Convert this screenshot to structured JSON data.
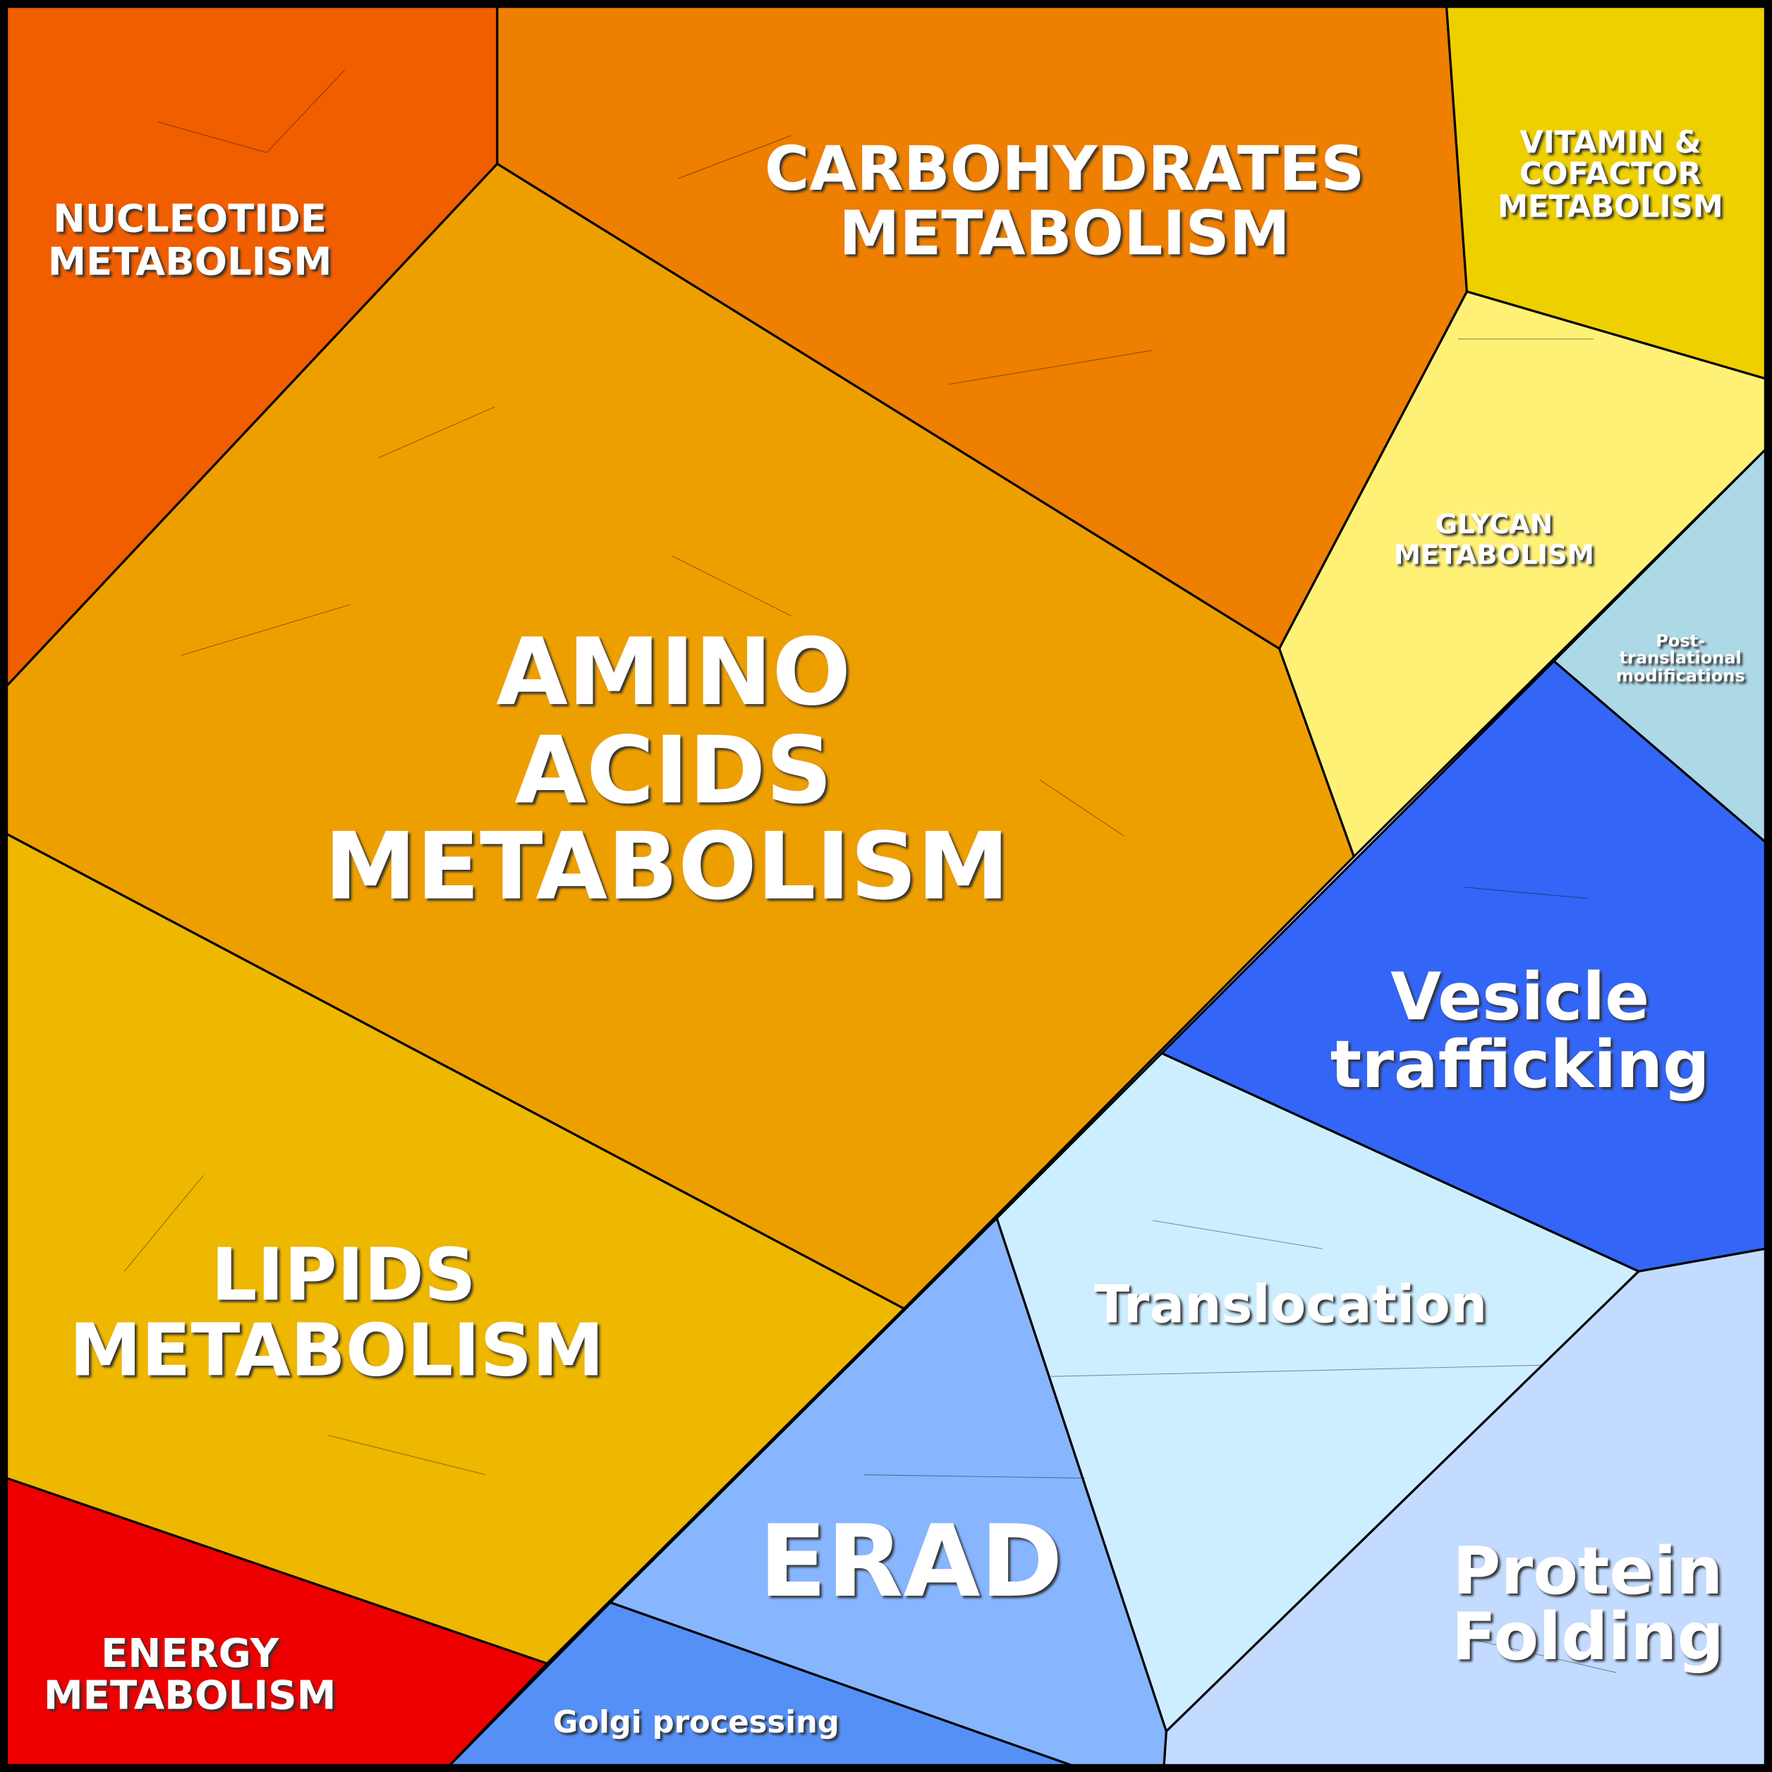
{
  "regions": [
    {
      "label": [
        "NUCLEOTIDE",
        "METABOLISM"
      ]
    },
    {
      "label": [
        "CARBOHYDRATES",
        "METABOLISM"
      ]
    },
    {
      "label": [
        "VITAMIN &",
        "COFACTOR",
        "METABOLISM"
      ]
    },
    {
      "label": [
        "GLYCAN",
        "METABOLISM"
      ]
    },
    {
      "label": [
        "Post-",
        "translational",
        "modifications"
      ]
    },
    {
      "label": [
        "AMINO",
        "ACIDS",
        "METABOLISM"
      ]
    },
    {
      "label": [
        "LIPIDS",
        "METABOLISM"
      ]
    },
    {
      "label": [
        "ENERGY",
        "METABOLISM"
      ]
    },
    {
      "label": [
        "Vesicle",
        "trafficking"
      ]
    },
    {
      "label": [
        "Translocation"
      ]
    },
    {
      "label": [
        "Protein",
        "Folding"
      ]
    },
    {
      "label": [
        "ERAD"
      ]
    },
    {
      "label": [
        "Golgi processing"
      ]
    }
  ]
}
